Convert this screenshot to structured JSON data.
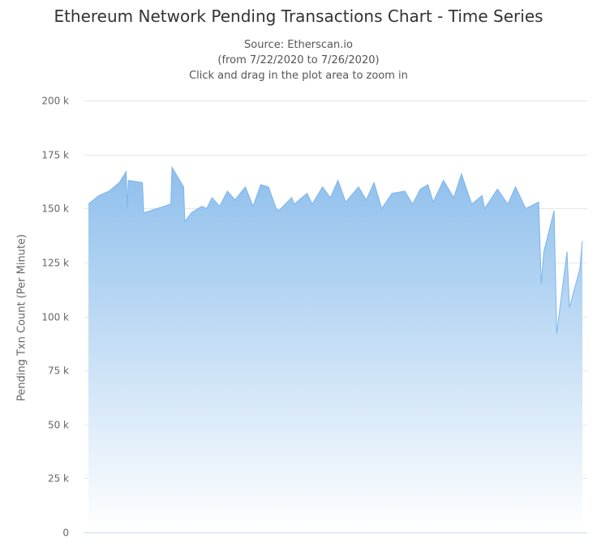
{
  "chart_data": {
    "type": "area",
    "title": "Ethereum Network Pending Transactions Chart - Time Series",
    "subtitle": [
      "Source: Etherscan.io",
      "(from 7/22/2020 to 7/26/2020)",
      "Click and drag in the plot area to zoom in"
    ],
    "xlabel": "",
    "ylabel": "Pending Txn Count (Per Minute)",
    "ylim": [
      0,
      200000
    ],
    "yticks": [
      0,
      25000,
      50000,
      75000,
      100000,
      125000,
      150000,
      175000,
      200000
    ],
    "ytick_labels": [
      "0",
      "25 k",
      "50 k",
      "75 k",
      "100 k",
      "125 k",
      "150 k",
      "175 k",
      "200 k"
    ],
    "xlim": [
      "2020-07-22",
      "2020-07-26"
    ],
    "grid": true,
    "legend": "none",
    "colors": {
      "area_top": "#8ebfec",
      "area_bottom": "#ffffff",
      "line": "#7cb5ec",
      "grid": "#e6e6e6"
    },
    "series": [
      {
        "x": [
          "2020-07-22 00:00",
          "2020-07-22 02:00",
          "2020-07-22 04:00",
          "2020-07-22 06:00",
          "2020-07-22 07:20",
          "2020-07-22 07:35",
          "2020-07-22 07:45",
          "2020-07-22 10:30",
          "2020-07-22 10:45",
          "2020-07-22 16:00",
          "2020-07-22 16:15",
          "2020-07-22 18:30",
          "2020-07-22 18:45",
          "2020-07-22 20:00",
          "2020-07-22 22:00",
          "2020-07-22 23:00",
          "2020-07-23 00:00",
          "2020-07-23 01:30",
          "2020-07-23 03:00",
          "2020-07-23 04:30",
          "2020-07-23 06:30",
          "2020-07-23 08:00",
          "2020-07-23 09:30",
          "2020-07-23 11:00",
          "2020-07-23 12:30",
          "2020-07-23 13:00",
          "2020-07-23 15:30",
          "2020-07-23 16:00",
          "2020-07-23 18:30",
          "2020-07-23 19:30",
          "2020-07-23 21:30",
          "2020-07-23 23:00",
          "2020-07-24 00:30",
          "2020-07-24 02:00",
          "2020-07-24 04:30",
          "2020-07-24 06:00",
          "2020-07-24 07:30",
          "2020-07-24 09:00",
          "2020-07-24 11:00",
          "2020-07-24 13:30",
          "2020-07-24 15:00",
          "2020-07-24 16:30",
          "2020-07-24 18:00",
          "2020-07-24 19:00",
          "2020-07-24 21:00",
          "2020-07-24 23:00",
          "2020-07-25 00:30",
          "2020-07-25 02:30",
          "2020-07-25 04:30",
          "2020-07-25 05:00",
          "2020-07-25 07:30",
          "2020-07-25 09:30",
          "2020-07-25 11:00",
          "2020-07-25 13:00",
          "2020-07-25 15:30",
          "2020-07-25 16:00",
          "2020-07-25 16:30",
          "2020-07-25 18:30",
          "2020-07-25 19:00",
          "2020-07-25 21:00",
          "2020-07-25 21:30",
          "2020-07-25 23:30",
          "2020-07-26 00:00"
        ],
        "y": [
          152000,
          156000,
          158000,
          162000,
          167000,
          150000,
          163000,
          162000,
          148000,
          152000,
          169000,
          160000,
          144000,
          148000,
          151000,
          150000,
          155000,
          151000,
          158000,
          154000,
          160000,
          151000,
          161000,
          160000,
          150000,
          149000,
          155000,
          152000,
          157000,
          152000,
          160000,
          155000,
          163000,
          153000,
          160000,
          154000,
          162000,
          150000,
          157000,
          158000,
          152000,
          159000,
          161000,
          153000,
          163000,
          155000,
          166000,
          152000,
          156000,
          150000,
          159000,
          152000,
          160000,
          150000,
          153000,
          115000,
          130000,
          149000,
          92000,
          130000,
          104000,
          122000,
          135000
        ]
      }
    ]
  }
}
